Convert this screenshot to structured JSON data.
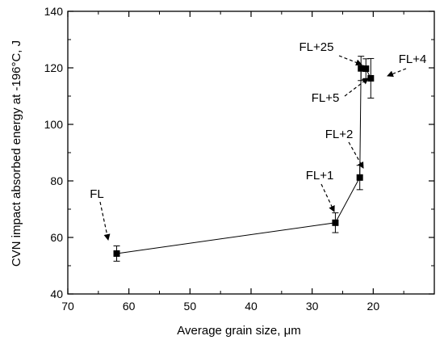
{
  "chart_data": {
    "type": "scatter",
    "xlabel": "Average grain size, μm",
    "ylabel": "CVN impact absorbed energy at -196°C, J",
    "xlim": [
      70,
      10
    ],
    "ylim": [
      40,
      140
    ],
    "x_axis_reversed": true,
    "x_ticks": [
      70,
      60,
      50,
      40,
      30,
      20
    ],
    "y_ticks": [
      40,
      60,
      80,
      100,
      120,
      140
    ],
    "x_tick_labels": [
      "70",
      "60",
      "50",
      "40",
      "30",
      "20"
    ],
    "y_tick_labels": [
      "40",
      "60",
      "80",
      "100",
      "120",
      "140"
    ],
    "grid": false,
    "series": [
      {
        "points": [
          {
            "label": "FL",
            "x": 62.0,
            "y": 54.3,
            "err": 2.7
          },
          {
            "label": "FL+1",
            "x": 26.2,
            "y": 65.2,
            "err": 3.5
          },
          {
            "label": "FL+2",
            "x": 22.2,
            "y": 81.2,
            "err": 4.3
          },
          {
            "label": "FL+25",
            "x": 22.0,
            "y": 119.8,
            "err": 4.3
          },
          {
            "label": "FL+5",
            "x": 21.2,
            "y": 119.7,
            "err": 3.5
          },
          {
            "label": "FL+4",
            "x": 20.4,
            "y": 116.3,
            "err": 7.0
          }
        ]
      }
    ]
  }
}
